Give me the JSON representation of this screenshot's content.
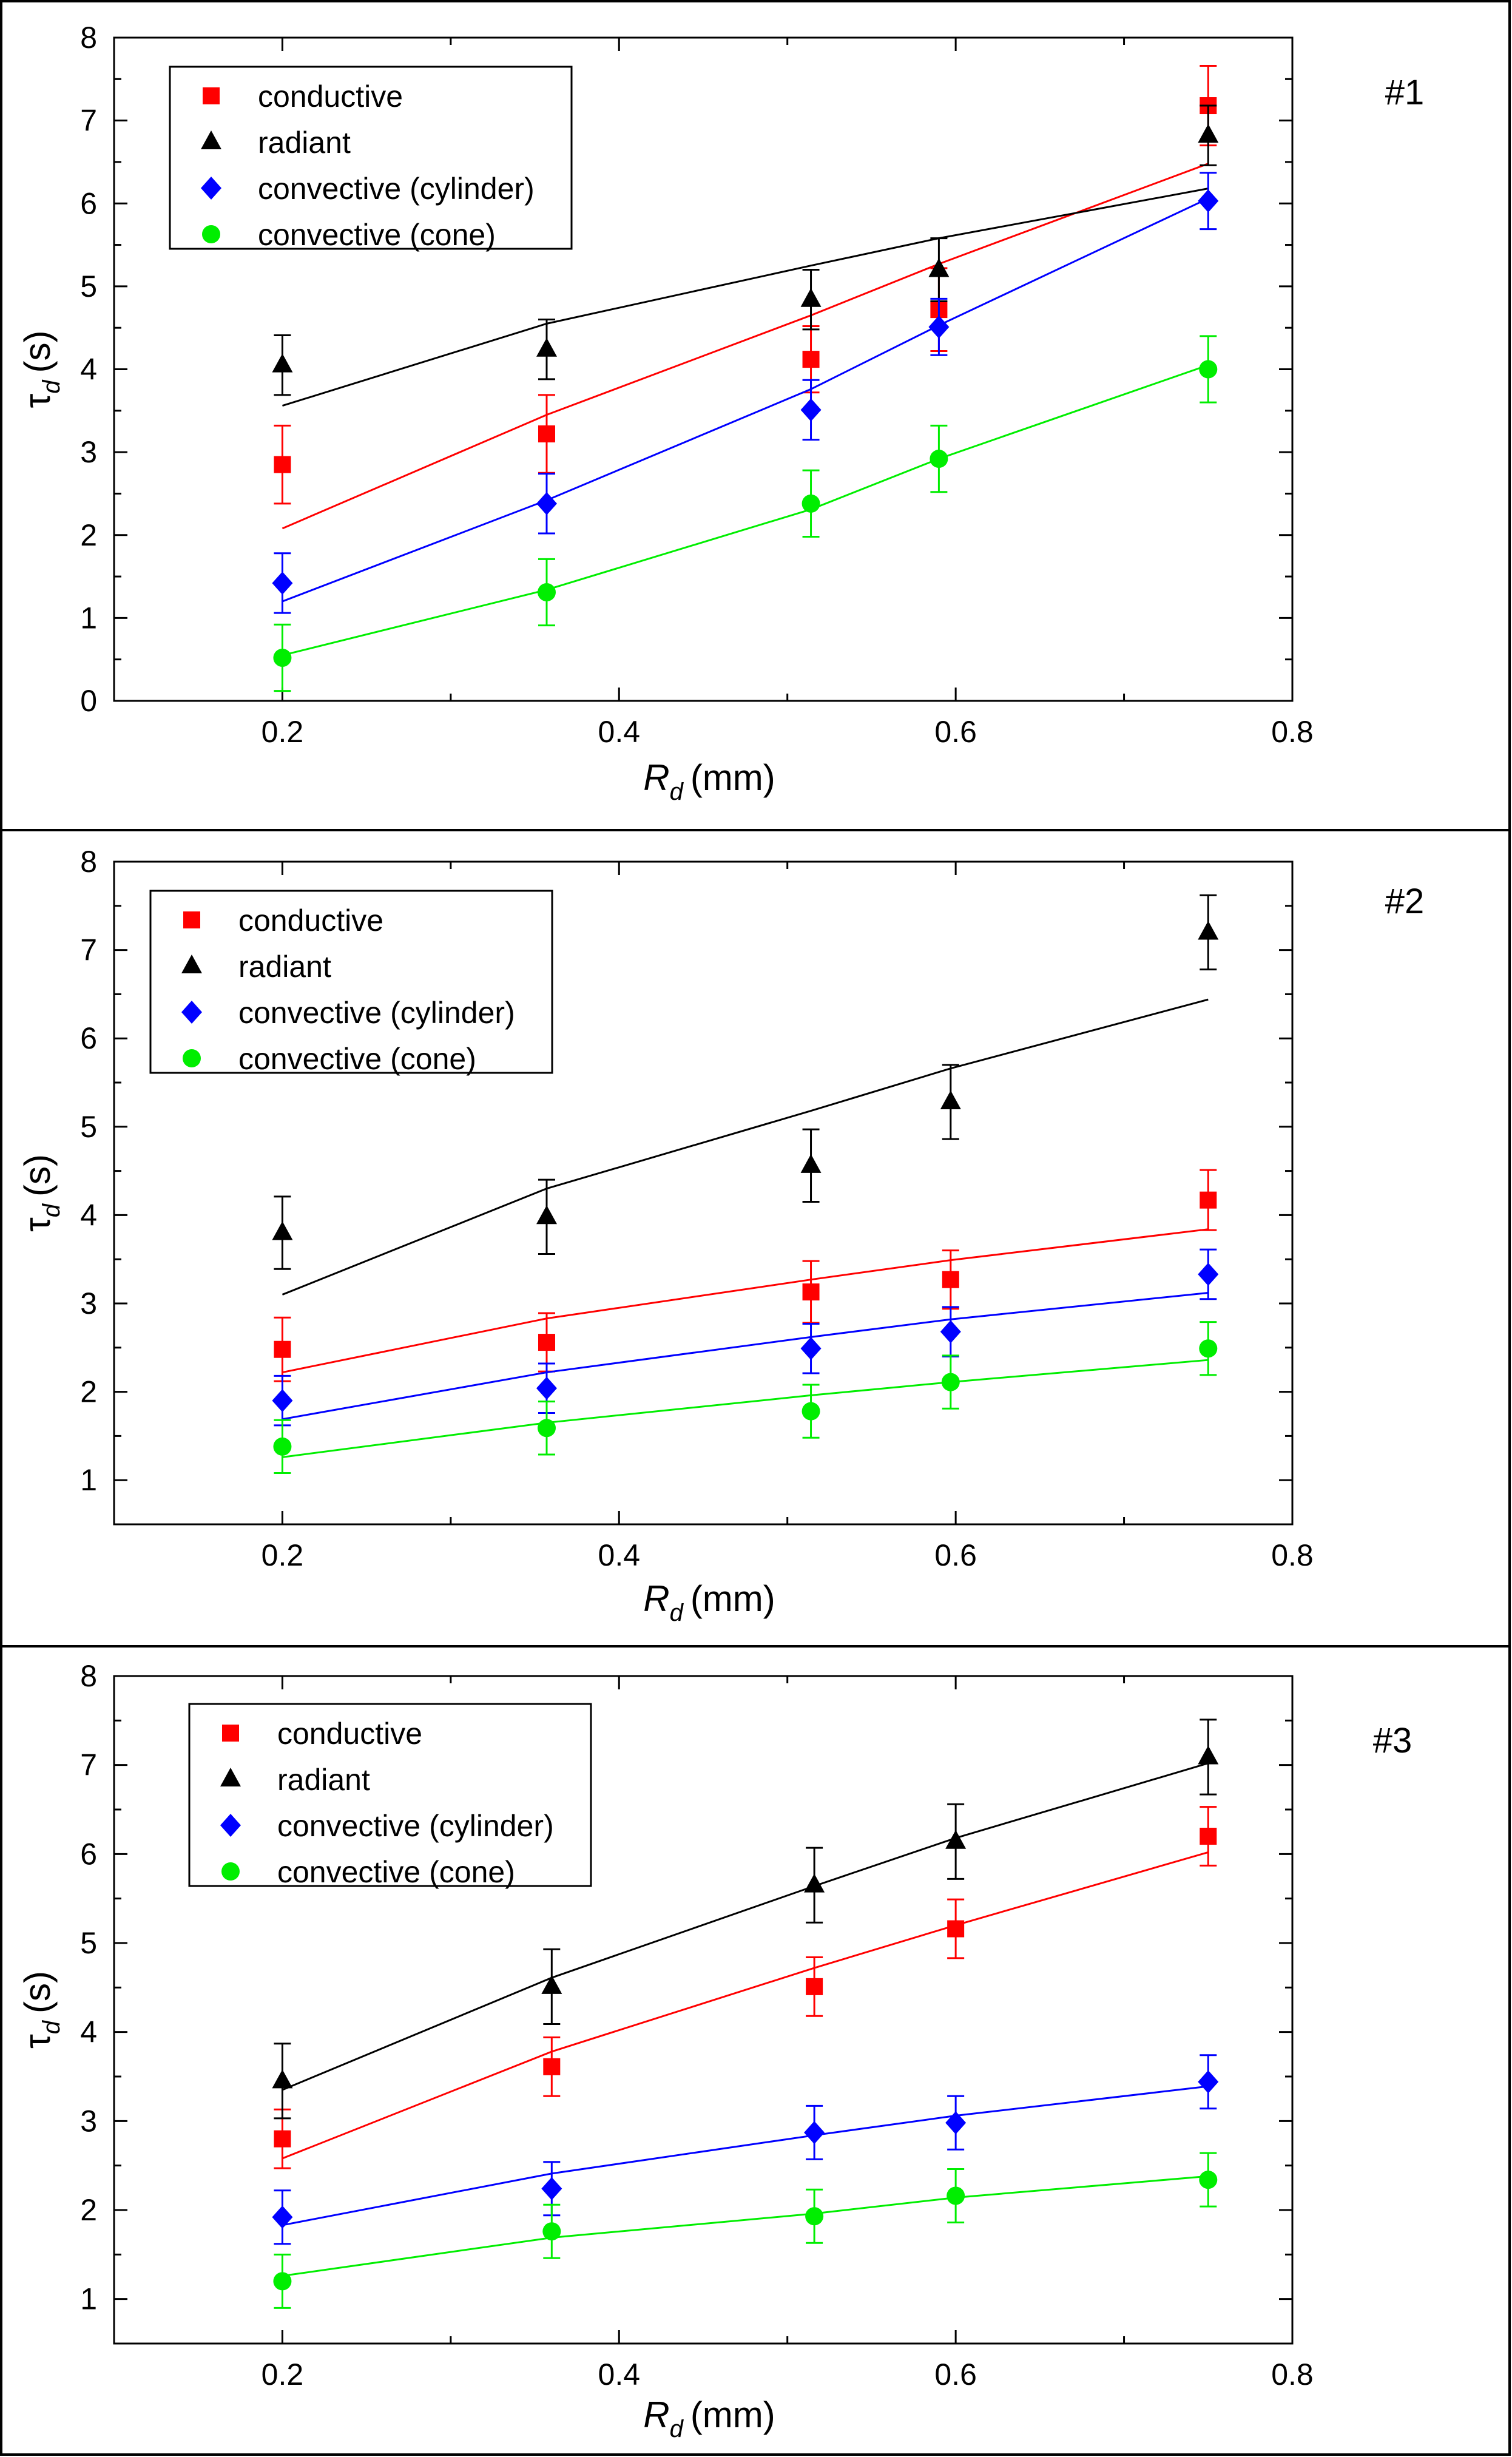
{
  "chart_data": [
    {
      "type": "scatter",
      "panel_label": "#1",
      "xlabel": "R",
      "xlabel_sub": "d",
      "xlabel_unit": "(mm)",
      "ylabel": "τ",
      "ylabel_sub": "d",
      "ylabel_unit": "(s)",
      "xlim": [
        0.1,
        0.8
      ],
      "ylim": [
        0,
        8
      ],
      "xticks": [
        "0.2",
        "0.4",
        "0.6",
        "0.8"
      ],
      "yticks": [
        "0",
        "1",
        "2",
        "3",
        "4",
        "5",
        "6",
        "7",
        "8"
      ],
      "legend_position": "top-left",
      "series": [
        {
          "name": "conductive",
          "color": "#ff0000",
          "marker": "square",
          "x": [
            0.2,
            0.357,
            0.514,
            0.59,
            0.75
          ],
          "y": [
            2.85,
            3.22,
            4.12,
            4.72,
            7.18
          ],
          "err": [
            0.47,
            0.47,
            0.4,
            0.5,
            0.48
          ],
          "fit_x": [
            0.2,
            0.357,
            0.514,
            0.59,
            0.75
          ],
          "fit_y": [
            2.08,
            3.45,
            4.65,
            5.27,
            6.48
          ]
        },
        {
          "name": "radiant",
          "color": "#000000",
          "marker": "triangle",
          "x": [
            0.2,
            0.357,
            0.514,
            0.59,
            0.75
          ],
          "y": [
            4.05,
            4.24,
            4.84,
            5.2,
            6.82
          ],
          "err": [
            0.36,
            0.36,
            0.36,
            0.38,
            0.36
          ],
          "fit_x": [
            0.2,
            0.357,
            0.514,
            0.59,
            0.75
          ],
          "fit_y": [
            3.56,
            4.55,
            5.25,
            5.58,
            6.18
          ]
        },
        {
          "name": "convective (cylinder)",
          "color": "#0000ff",
          "marker": "diamond",
          "x": [
            0.2,
            0.357,
            0.514,
            0.59,
            0.75
          ],
          "y": [
            1.42,
            2.38,
            3.51,
            4.51,
            6.03
          ],
          "err": [
            0.36,
            0.36,
            0.36,
            0.34,
            0.34
          ],
          "fit_x": [
            0.2,
            0.357,
            0.514,
            0.59,
            0.75
          ],
          "fit_y": [
            1.2,
            2.42,
            3.76,
            4.53,
            6.06
          ]
        },
        {
          "name": "convective (cone)",
          "color": "#00ee00",
          "marker": "circle",
          "x": [
            0.2,
            0.357,
            0.514,
            0.59,
            0.75
          ],
          "y": [
            0.52,
            1.31,
            2.38,
            2.92,
            4.0
          ],
          "err": [
            0.4,
            0.4,
            0.4,
            0.4,
            0.4
          ],
          "fit_x": [
            0.2,
            0.357,
            0.514,
            0.59,
            0.75
          ],
          "fit_y": [
            0.55,
            1.34,
            2.31,
            2.92,
            4.05
          ]
        }
      ]
    },
    {
      "type": "scatter",
      "panel_label": "#2",
      "xlabel": "R",
      "xlabel_sub": "d",
      "xlabel_unit": "(mm)",
      "ylabel": "τ",
      "ylabel_sub": "d",
      "ylabel_unit": "(s)",
      "xlim": [
        0.1,
        0.8
      ],
      "ylim": [
        0.5,
        8
      ],
      "xticks": [
        "0.2",
        "0.4",
        "0.6",
        "0.8"
      ],
      "yticks": [
        "1",
        "2",
        "3",
        "4",
        "5",
        "6",
        "7",
        "8"
      ],
      "legend_position": "top-left",
      "series": [
        {
          "name": "conductive",
          "color": "#ff0000",
          "marker": "square",
          "x": [
            0.2,
            0.357,
            0.514,
            0.597,
            0.75
          ],
          "y": [
            2.48,
            2.56,
            3.13,
            3.27,
            4.17
          ],
          "err": [
            0.36,
            0.33,
            0.35,
            0.33,
            0.34
          ],
          "fit_x": [
            0.2,
            0.357,
            0.514,
            0.597,
            0.75
          ],
          "fit_y": [
            2.22,
            2.83,
            3.27,
            3.49,
            3.84
          ]
        },
        {
          "name": "radiant",
          "color": "#000000",
          "marker": "triangle",
          "x": [
            0.2,
            0.357,
            0.514,
            0.597,
            0.75
          ],
          "y": [
            3.8,
            3.98,
            4.56,
            5.28,
            7.2
          ],
          "err": [
            0.41,
            0.42,
            0.41,
            0.42,
            0.42
          ],
          "fit_x": [
            0.2,
            0.357,
            0.514,
            0.597,
            0.75
          ],
          "fit_y": [
            3.1,
            4.3,
            5.18,
            5.66,
            6.44
          ]
        },
        {
          "name": "convective (cylinder)",
          "color": "#0000ff",
          "marker": "diamond",
          "x": [
            0.2,
            0.357,
            0.514,
            0.597,
            0.75
          ],
          "y": [
            1.9,
            2.04,
            2.49,
            2.68,
            3.33
          ],
          "err": [
            0.28,
            0.28,
            0.28,
            0.28,
            0.28
          ],
          "fit_x": [
            0.2,
            0.357,
            0.514,
            0.597,
            0.75
          ],
          "fit_y": [
            1.69,
            2.22,
            2.62,
            2.82,
            3.12
          ]
        },
        {
          "name": "convective (cone)",
          "color": "#00ee00",
          "marker": "circle",
          "x": [
            0.2,
            0.357,
            0.514,
            0.597,
            0.75
          ],
          "y": [
            1.38,
            1.59,
            1.78,
            2.11,
            2.49
          ],
          "err": [
            0.3,
            0.3,
            0.3,
            0.3,
            0.3
          ],
          "fit_x": [
            0.2,
            0.357,
            0.514,
            0.597,
            0.75
          ],
          "fit_y": [
            1.26,
            1.65,
            1.96,
            2.11,
            2.36
          ]
        }
      ]
    },
    {
      "type": "scatter",
      "panel_label": "#3",
      "xlabel": "R",
      "xlabel_sub": "d",
      "xlabel_unit": "(mm)",
      "ylabel": "τ",
      "ylabel_sub": "d",
      "ylabel_unit": "(s)",
      "xlim": [
        0.1,
        0.8
      ],
      "ylim": [
        0.5,
        8
      ],
      "xticks": [
        "0.2",
        "0.4",
        "0.6",
        "0.8"
      ],
      "yticks": [
        "1",
        "2",
        "3",
        "4",
        "5",
        "6",
        "7",
        "8"
      ],
      "legend_position": "top-left",
      "series": [
        {
          "name": "conductive",
          "color": "#ff0000",
          "marker": "square",
          "x": [
            0.2,
            0.36,
            0.516,
            0.6,
            0.75
          ],
          "y": [
            2.8,
            3.61,
            4.51,
            5.16,
            6.2
          ],
          "err": [
            0.33,
            0.33,
            0.33,
            0.33,
            0.33
          ],
          "fit_x": [
            0.2,
            0.36,
            0.516,
            0.6,
            0.75
          ],
          "fit_y": [
            2.58,
            3.78,
            4.72,
            5.2,
            6.02
          ]
        },
        {
          "name": "radiant",
          "color": "#000000",
          "marker": "triangle",
          "x": [
            0.2,
            0.36,
            0.516,
            0.6,
            0.75
          ],
          "y": [
            3.45,
            4.51,
            5.65,
            6.14,
            7.09
          ],
          "err": [
            0.42,
            0.42,
            0.42,
            0.42,
            0.42
          ],
          "fit_x": [
            0.2,
            0.36,
            0.516,
            0.6,
            0.75
          ],
          "fit_y": [
            3.35,
            4.61,
            5.64,
            6.18,
            7.02
          ]
        },
        {
          "name": "convective (cylinder)",
          "color": "#0000ff",
          "marker": "diamond",
          "x": [
            0.2,
            0.36,
            0.516,
            0.6,
            0.75
          ],
          "y": [
            1.92,
            2.24,
            2.87,
            2.98,
            3.44
          ],
          "err": [
            0.3,
            0.3,
            0.3,
            0.3,
            0.3
          ],
          "fit_x": [
            0.2,
            0.36,
            0.516,
            0.6,
            0.75
          ],
          "fit_y": [
            1.83,
            2.41,
            2.84,
            3.06,
            3.39
          ]
        },
        {
          "name": "convective (cone)",
          "color": "#00ee00",
          "marker": "circle",
          "x": [
            0.2,
            0.36,
            0.516,
            0.6,
            0.75
          ],
          "y": [
            1.2,
            1.76,
            1.93,
            2.16,
            2.34
          ],
          "err": [
            0.3,
            0.3,
            0.3,
            0.3,
            0.3
          ],
          "fit_x": [
            0.2,
            0.36,
            0.516,
            0.6,
            0.75
          ],
          "fit_y": [
            1.26,
            1.69,
            1.96,
            2.14,
            2.38
          ]
        }
      ]
    }
  ]
}
